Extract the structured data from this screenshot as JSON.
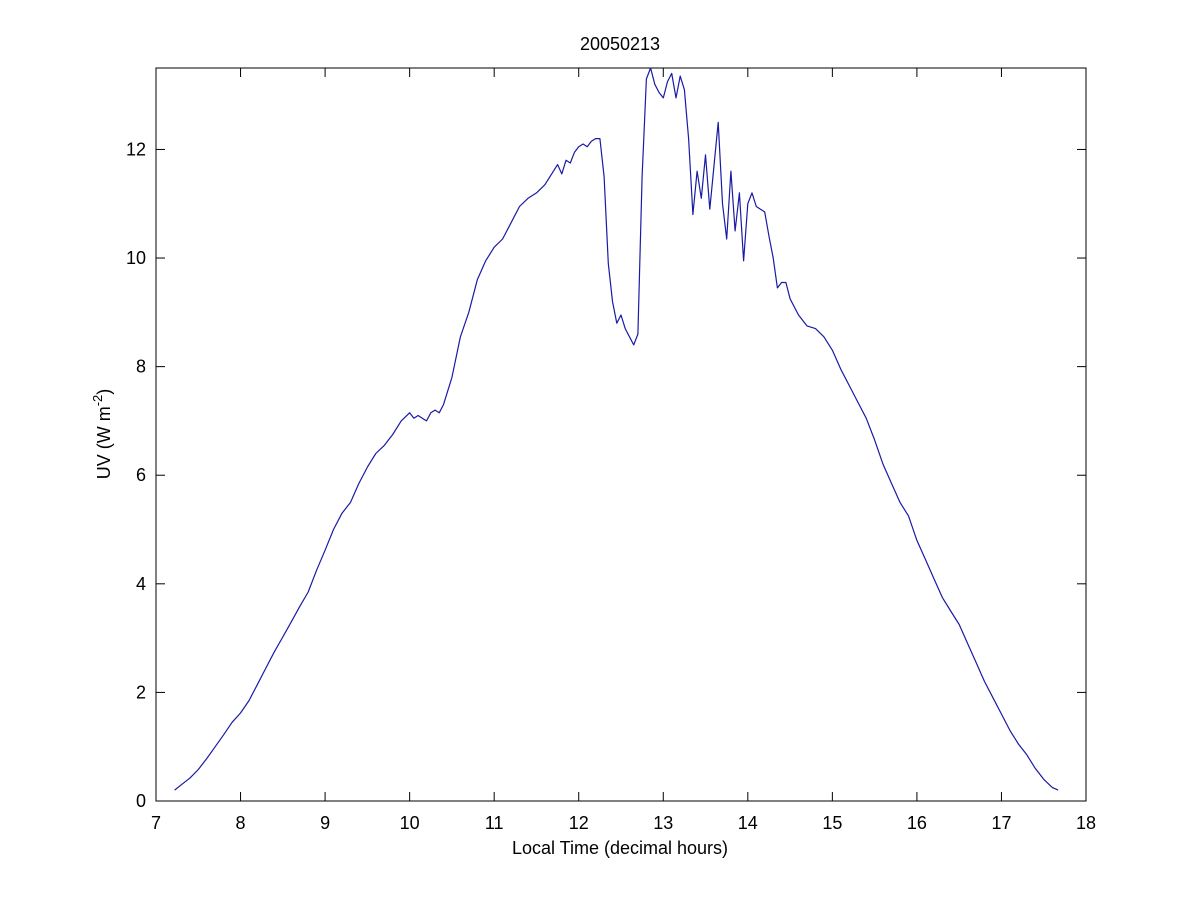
{
  "chart_data": {
    "type": "line",
    "title": "20050213",
    "xlabel": "Local Time (decimal hours)",
    "ylabel": {
      "base": "UV (W m",
      "sup": "-2",
      "close": ")"
    },
    "xlim": [
      7,
      18
    ],
    "ylim": [
      0,
      13.5
    ],
    "xticks": [
      7,
      8,
      9,
      10,
      11,
      12,
      13,
      14,
      15,
      16,
      17,
      18
    ],
    "yticks": [
      0,
      2,
      4,
      6,
      8,
      10,
      12
    ],
    "xtick_labels": [
      "7",
      "8",
      "9",
      "10",
      "11",
      "12",
      "13",
      "14",
      "15",
      "16",
      "17",
      "18"
    ],
    "ytick_labels": [
      "0",
      "2",
      "4",
      "6",
      "8",
      "10",
      "12"
    ],
    "grid": false,
    "line_color": "#1a1aa6",
    "series": [
      {
        "x": [
          7.22,
          7.3,
          7.4,
          7.5,
          7.6,
          7.7,
          7.8,
          7.9,
          8.0,
          8.1,
          8.2,
          8.3,
          8.4,
          8.5,
          8.6,
          8.7,
          8.8,
          8.9,
          9.0,
          9.1,
          9.2,
          9.3,
          9.4,
          9.5,
          9.6,
          9.7,
          9.8,
          9.9,
          10.0,
          10.05,
          10.1,
          10.15,
          10.2,
          10.25,
          10.3,
          10.35,
          10.4,
          10.5,
          10.6,
          10.7,
          10.8,
          10.9,
          11.0,
          11.1,
          11.2,
          11.3,
          11.4,
          11.5,
          11.6,
          11.7,
          11.75,
          11.8,
          11.85,
          11.9,
          11.95,
          12.0,
          12.05,
          12.1,
          12.15,
          12.2,
          12.25,
          12.3,
          12.35,
          12.4,
          12.45,
          12.5,
          12.55,
          12.6,
          12.65,
          12.7,
          12.75,
          12.8,
          12.85,
          12.9,
          12.95,
          13.0,
          13.05,
          13.1,
          13.15,
          13.2,
          13.25,
          13.3,
          13.35,
          13.4,
          13.45,
          13.5,
          13.55,
          13.6,
          13.65,
          13.7,
          13.75,
          13.8,
          13.85,
          13.9,
          13.95,
          14.0,
          14.05,
          14.1,
          14.15,
          14.2,
          14.25,
          14.3,
          14.35,
          14.4,
          14.45,
          14.5,
          14.6,
          14.7,
          14.8,
          14.9,
          15.0,
          15.1,
          15.2,
          15.3,
          15.4,
          15.5,
          15.6,
          15.7,
          15.8,
          15.9,
          16.0,
          16.1,
          16.2,
          16.3,
          16.4,
          16.5,
          16.6,
          16.7,
          16.8,
          16.9,
          17.0,
          17.1,
          17.2,
          17.3,
          17.4,
          17.5,
          17.6,
          17.67
        ],
        "y": [
          0.2,
          0.3,
          0.42,
          0.58,
          0.78,
          1.0,
          1.22,
          1.45,
          1.62,
          1.85,
          2.15,
          2.45,
          2.75,
          3.02,
          3.3,
          3.58,
          3.85,
          4.25,
          4.62,
          5.0,
          5.3,
          5.5,
          5.85,
          6.15,
          6.4,
          6.55,
          6.75,
          7.0,
          7.15,
          7.05,
          7.1,
          7.05,
          7.0,
          7.15,
          7.2,
          7.15,
          7.3,
          7.8,
          8.55,
          9.0,
          9.6,
          9.95,
          10.2,
          10.35,
          10.65,
          10.95,
          11.1,
          11.2,
          11.35,
          11.6,
          11.72,
          11.55,
          11.8,
          11.75,
          11.95,
          12.05,
          12.1,
          12.05,
          12.15,
          12.2,
          12.2,
          11.5,
          9.9,
          9.2,
          8.8,
          8.95,
          8.7,
          8.55,
          8.4,
          8.6,
          11.5,
          13.3,
          13.5,
          13.2,
          13.05,
          12.95,
          13.25,
          13.4,
          12.95,
          13.35,
          13.1,
          12.2,
          10.8,
          11.6,
          11.1,
          11.9,
          10.9,
          11.7,
          12.5,
          11.0,
          10.35,
          11.6,
          10.5,
          11.2,
          9.95,
          11.0,
          11.2,
          10.95,
          10.9,
          10.85,
          10.4,
          10.0,
          9.45,
          9.55,
          9.55,
          9.25,
          8.95,
          8.75,
          8.7,
          8.55,
          8.3,
          7.95,
          7.65,
          7.35,
          7.05,
          6.65,
          6.2,
          5.85,
          5.5,
          5.25,
          4.8,
          4.45,
          4.1,
          3.75,
          3.5,
          3.25,
          2.9,
          2.55,
          2.2,
          1.9,
          1.6,
          1.3,
          1.05,
          0.85,
          0.6,
          0.4,
          0.25,
          0.2
        ]
      }
    ]
  }
}
